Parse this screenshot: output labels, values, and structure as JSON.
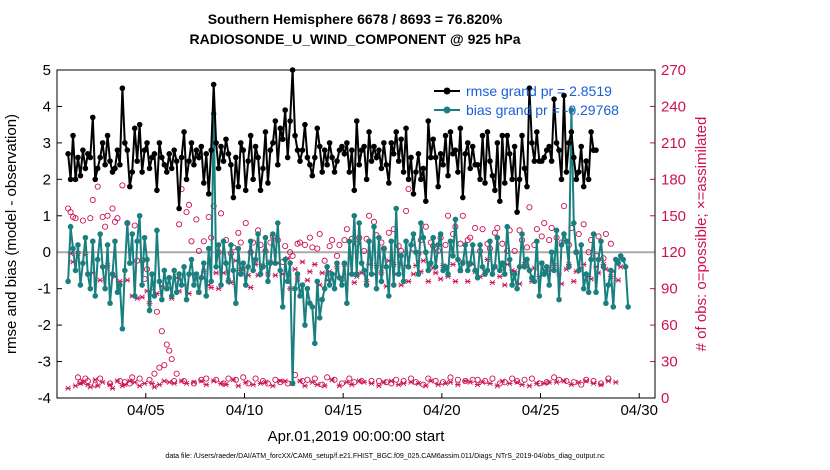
{
  "chart_data": {
    "type": "line",
    "title": "Southern Hemisphere 6678 / 8693 = 76.820%",
    "subtitle": "RADIOSONDE_U_WIND_COMPONENT @ 925 hPa",
    "xlabel": "Apr.01,2019 00:00:00 start",
    "ylabel": "rmse and bias (model - observation)",
    "ylabel_right": "# of obs: o=possible; ×=assimilated",
    "footer": "data file: /Users/raeder/DAI/ATM_forcXX/CAM6_setup/f.e21.FHIST_BGC.f09_025.CAM6assim.011/Diags_NTrS_2019-04/obs_diag_output.nc",
    "xlim": [
      0.5,
      30.8
    ],
    "ylim": [
      -4,
      5
    ],
    "ylim_right": [
      0,
      270
    ],
    "x_ticks": [
      5,
      10,
      15,
      20,
      25,
      30
    ],
    "x_tick_labels": [
      "04/05",
      "04/10",
      "04/15",
      "04/20",
      "04/25",
      "04/30"
    ],
    "y_ticks": [
      -4,
      -3,
      -2,
      -1,
      0,
      1,
      2,
      3,
      4,
      5
    ],
    "y_tick_labels": [
      "-4",
      "-3",
      "-2",
      "-1",
      "0",
      "1",
      "2",
      "3",
      "4",
      "5"
    ],
    "y_right_ticks": [
      0,
      30,
      60,
      90,
      120,
      150,
      180,
      210,
      240,
      270
    ],
    "y_right_tick_labels": [
      "0",
      "30",
      "60",
      "90",
      "120",
      "150",
      "180",
      "210",
      "240",
      "270"
    ],
    "legend_position": "top-right",
    "colors": {
      "rmse": "#000000",
      "bias": "#1a7f7f",
      "obs": "#cc1155",
      "zero_line": "#aaaaaa",
      "legend_text": "#1a5fd6"
    },
    "series": [
      {
        "name": "rmse grand pr = 2.8519",
        "values": [
          2.7,
          2.0,
          3.2,
          2.0,
          2.6,
          2.1,
          2.8,
          2.3,
          2.7,
          2.6,
          3.7,
          2.0,
          2.3,
          2.6,
          3.0,
          2.4,
          3.2,
          2.5,
          2.2,
          2.3,
          2.8,
          2.4,
          4.5,
          3.0,
          2.8,
          1.8,
          2.2,
          3.4,
          2.5,
          3.5,
          2.2,
          2.8,
          3.0,
          2.3,
          2.6,
          2.7,
          1.7,
          3.0,
          2.6,
          2.4,
          2.2,
          2.7,
          2.3,
          2.8,
          2.5,
          1.2,
          2.6,
          3.3,
          2.0,
          2.5,
          3.0,
          2.4,
          2.8,
          2.6,
          2.9,
          1.9,
          2.7,
          1.6,
          2.8,
          4.6,
          3.0,
          2.3,
          2.9,
          2.5,
          3.1,
          2.7,
          2.4,
          1.5,
          2.6,
          1.8,
          3.0,
          2.8,
          1.7,
          2.5,
          3.2,
          2.0,
          2.9,
          2.6,
          1.7,
          2.3,
          3.3,
          1.9,
          2.8,
          3.0,
          3.6,
          2.4,
          3.4,
          3.1,
          3.9,
          2.6,
          3.6,
          5.0,
          3.2,
          2.8,
          2.5,
          2.8,
          3.5,
          2.6,
          2.4,
          2.1,
          2.6,
          3.4,
          2.9,
          2.2,
          2.8,
          2.4,
          3.0,
          2.6,
          2.2,
          2.5,
          2.8,
          2.9,
          2.7,
          3.0,
          2.2,
          2.8,
          1.7,
          3.6,
          2.4,
          2.8,
          2.9,
          2.0,
          3.3,
          2.5,
          2.9,
          2.6,
          2.8,
          2.3,
          3.0,
          2.4,
          1.9,
          3.0,
          2.7,
          3.3,
          2.5,
          3.1,
          2.2,
          3.4,
          2.0,
          2.6,
          1.6,
          2.2,
          2.7,
          2.0,
          2.3,
          1.4,
          3.6,
          2.6,
          3.1,
          2.6,
          1.8,
          2.7,
          2.4,
          3.2,
          2.1,
          3.3,
          2.7,
          2.8,
          2.2,
          3.4,
          1.5,
          2.7,
          3.0,
          2.3,
          2.9,
          2.4,
          2.4,
          2.0,
          3.2,
          1.9,
          3.3,
          2.5,
          2.1,
          1.7,
          3.0,
          1.4,
          3.2,
          1.9,
          3.2,
          2.7,
          2.0,
          2.9,
          1.1,
          2.0,
          3.2,
          2.3,
          1.8,
          4.5,
          3.0,
          2.5,
          3.3,
          2.5,
          2.5,
          2.6,
          2.8,
          2.9,
          2.5,
          4.2,
          3.0,
          2.8,
          2.0,
          4.3,
          2.2,
          3.0,
          3.3,
          2.6,
          2.0,
          2.2,
          2.9,
          1.8,
          2.5,
          2.0,
          3.3,
          2.8,
          2.8
        ]
      },
      {
        "name": "bias grand pr = -0.29768",
        "values": [
          -0.8,
          0.7,
          0.1,
          -0.5,
          0.2,
          -0.9,
          -0.3,
          0.4,
          -0.6,
          -1.0,
          0.3,
          -1.2,
          -0.2,
          0.5,
          -0.4,
          -1.0,
          0.2,
          -1.4,
          -0.6,
          0.3,
          -1.1,
          -0.9,
          -2.1,
          -0.5,
          0.8,
          -0.3,
          0.5,
          -1.2,
          0.3,
          1.0,
          -0.9,
          0.4,
          -0.2,
          -1.6,
          -0.6,
          -1.2,
          0.6,
          -0.8,
          -1.3,
          -0.5,
          -1.0,
          -0.7,
          -1.2,
          -0.5,
          -1.1,
          -0.6,
          -0.9,
          -0.4,
          -1.3,
          -0.6,
          -0.2,
          -0.9,
          -0.6,
          -1.1,
          -0.7,
          -0.3,
          -1.2,
          0.1,
          -0.8,
          3.8,
          -0.4,
          0.2,
          -0.9,
          0.3,
          -0.3,
          -0.8,
          0.2,
          -0.5,
          -1.4,
          0.1,
          -0.6,
          -0.3,
          -0.9,
          -0.4,
          0.3,
          -0.5,
          -0.2,
          0.5,
          -0.6,
          -0.4,
          0.4,
          -0.8,
          -0.3,
          0.5,
          -0.3,
          0.8,
          -0.5,
          -1.5,
          -0.2,
          -0.8,
          -0.3,
          -3.6,
          -1.0,
          -0.6,
          -1.2,
          -0.9,
          -2.0,
          -1.0,
          -1.4,
          -1.5,
          -2.5,
          -0.8,
          -1.8,
          -1.3,
          -1.0,
          -0.4,
          -0.9,
          -0.6,
          -1.0,
          -0.3,
          -0.7,
          -0.9,
          -0.3,
          -1.4,
          0.3,
          -0.6,
          1.0,
          -0.6,
          0.8,
          -0.3,
          -0.5,
          -0.9,
          0.3,
          -0.6,
          0.7,
          -1.0,
          0.4,
          -0.8,
          0.1,
          -0.4,
          -1.2,
          0.3,
          -0.9,
          1.2,
          -0.6,
          -0.1,
          -0.8,
          0.3,
          -0.4,
          0.2,
          0.5,
          0.0,
          -0.6,
          0.8,
          0.4,
          0.0,
          -0.5,
          -0.3,
          0.4,
          -0.4,
          0.2,
          0.5,
          -0.5,
          -0.4,
          -0.6,
          0.3,
          -0.1,
          0.9,
          -0.2,
          -0.5,
          -0.3,
          0.2,
          -0.5,
          -0.3,
          0.2,
          -0.5,
          -0.7,
          0.2,
          -0.4,
          -0.6,
          -0.5,
          0.3,
          -0.6,
          -0.4,
          0.4,
          -0.5,
          -0.3,
          -0.6,
          0.7,
          -0.2,
          -0.9,
          -0.6,
          -1.0,
          -0.4,
          0.5,
          -0.4,
          -0.2,
          -0.5,
          -0.7,
          -0.8,
          0.3,
          -1.2,
          -0.3,
          -0.6,
          -0.4,
          -0.9,
          0.0,
          -0.5,
          0.6,
          -1.3,
          0.2,
          0.5,
          0.3,
          -0.4,
          3.9,
          0.8,
          0.0,
          -0.5,
          0.2,
          -1.0,
          -0.6,
          -1.1,
          -0.2,
          0.5,
          -1.1,
          -0.2,
          0.3,
          -0.4,
          -1.4,
          -0.9,
          -0.5,
          -1.5,
          -0.2,
          -0.3,
          -0.1,
          -0.2,
          -0.4,
          -1.5
        ]
      }
    ],
    "obs_possible_values": [
      156,
      153,
      149,
      148,
      17,
      13,
      146,
      16,
      14,
      148,
      163,
      11,
      174,
      16,
      149,
      141,
      150,
      12,
      156,
      145,
      148,
      14,
      175,
      13,
      144,
      12,
      17,
      142,
      113,
      16,
      113,
      98,
      106,
      15,
      87,
      20,
      71,
      25,
      55,
      27,
      44,
      39,
      32,
      14,
      20,
      143,
      172,
      14,
      153,
      159,
      129,
      12,
      147,
      121,
      15,
      129,
      16,
      149,
      132,
      158,
      15,
      120,
      152,
      12,
      130,
      16,
      119,
      124,
      15,
      136,
      128,
      17,
      144,
      12,
      120,
      128,
      16,
      138,
      126,
      14,
      121,
      12,
      128,
      133,
      15,
      130,
      13,
      112,
      125,
      12,
      120,
      117,
      19,
      127,
      128,
      14,
      126,
      15,
      132,
      124,
      16,
      123,
      135,
      11,
      113,
      17,
      125,
      130,
      15,
      117,
      126,
      12,
      130,
      139,
      16,
      131,
      13,
      127,
      132,
      14,
      121,
      131,
      150,
      14,
      145,
      134,
      14,
      128,
      123,
      13,
      136,
      12,
      139,
      15,
      125,
      121,
      14,
      154,
      172,
      16,
      123,
      13,
      119,
      130,
      11,
      141,
      16,
      128,
      125,
      14,
      121,
      132,
      13,
      126,
      150,
      17,
      135,
      141,
      15,
      127,
      150,
      14,
      130,
      132,
      15,
      140,
      15,
      121,
      139,
      14,
      127,
      123,
      16,
      136,
      140,
      12,
      127,
      13,
      121,
      138,
      16,
      121,
      14,
      138,
      130,
      15,
      124,
      157,
      16,
      126,
      139,
      12,
      133,
      144,
      13,
      130,
      140,
      17,
      132,
      15,
      128,
      158,
      14,
      126,
      140,
      13,
      120,
      135,
      11,
      143,
      15,
      120,
      130,
      14,
      117,
      133,
      12,
      115,
      135,
      16,
      127
    ],
    "obs_assimilated_values": [
      8,
      119,
      112,
      10,
      119,
      12,
      13,
      118,
      11,
      9,
      103,
      15,
      10,
      97,
      13,
      108,
      109,
      11,
      8,
      100,
      14,
      96,
      10,
      11,
      97,
      14,
      84,
      13,
      82,
      10,
      83,
      12,
      88,
      78,
      12,
      9,
      86,
      11,
      92,
      14,
      90,
      13,
      82,
      12,
      99,
      88,
      14,
      93,
      12,
      86,
      102,
      13,
      98,
      87,
      14,
      104,
      11,
      93,
      91,
      14,
      103,
      90,
      12,
      103,
      11,
      97,
      95,
      15,
      113,
      10,
      105,
      106,
      13,
      101,
      91,
      11,
      110,
      101,
      12,
      109,
      13,
      102,
      112,
      10,
      101,
      111,
      14,
      102,
      14,
      115,
      90,
      12,
      106,
      98,
      14,
      112,
      10,
      97,
      104,
      13,
      110,
      11,
      93,
      103,
      10,
      97,
      104,
      15,
      102,
      108,
      10,
      98,
      110,
      13,
      102,
      11,
      95,
      100,
      14,
      103,
      13,
      96,
      110,
      12,
      102,
      109,
      10,
      103,
      13,
      92,
      113,
      14,
      110,
      102,
      11,
      93,
      12,
      109,
      96,
      13,
      102,
      109,
      12,
      104,
      113,
      10,
      96,
      14,
      107,
      103,
      11,
      98,
      109,
      12,
      100,
      13,
      110,
      96,
      11,
      105,
      112,
      14,
      96,
      13,
      110,
      104,
      11,
      100,
      13,
      105,
      114,
      12,
      95,
      108,
      10,
      100,
      14,
      93,
      110,
      12,
      105,
      104,
      13,
      94,
      11,
      110,
      108,
      10,
      96,
      107,
      12,
      100,
      111,
      12,
      104,
      13,
      105,
      109,
      13,
      102,
      94,
      14,
      106,
      110,
      11,
      96,
      104,
      13,
      107,
      110,
      14,
      100,
      98,
      12,
      108,
      103,
      11,
      110,
      106,
      14,
      100,
      104,
      13,
      97,
      108
    ]
  }
}
